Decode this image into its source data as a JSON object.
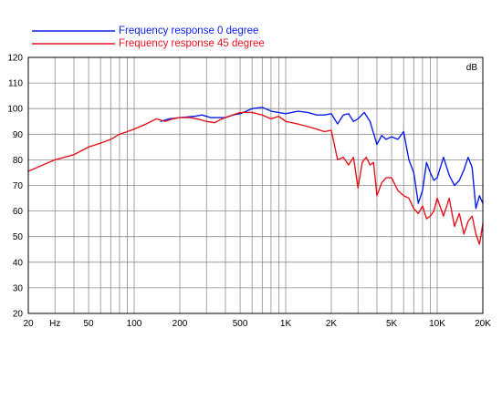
{
  "chart_data": {
    "type": "line",
    "xscale": "log",
    "xlim": [
      20,
      20000
    ],
    "ylim": [
      20,
      120
    ],
    "y_unit": "dB",
    "x_ticks": [
      {
        "value": 20,
        "label": "20"
      },
      {
        "value": 30,
        "label": "Hz"
      },
      {
        "value": 50,
        "label": "50"
      },
      {
        "value": 100,
        "label": "100"
      },
      {
        "value": 200,
        "label": "200"
      },
      {
        "value": 500,
        "label": "500"
      },
      {
        "value": 1000,
        "label": "1K"
      },
      {
        "value": 2000,
        "label": "2K"
      },
      {
        "value": 5000,
        "label": "5K"
      },
      {
        "value": 10000,
        "label": "10K"
      },
      {
        "value": 20000,
        "label": "20K"
      }
    ],
    "x_gridlines": [
      20,
      30,
      40,
      50,
      60,
      70,
      80,
      90,
      100,
      200,
      300,
      400,
      500,
      600,
      700,
      800,
      900,
      1000,
      2000,
      3000,
      4000,
      5000,
      6000,
      7000,
      8000,
      9000,
      10000,
      20000
    ],
    "y_ticks": [
      120,
      110,
      100,
      90,
      80,
      70,
      60,
      50,
      40,
      30,
      20
    ],
    "grid": true,
    "legend_position": "top-left",
    "series": [
      {
        "name": "Frequency response 0 degree",
        "color": "#0a1ee6",
        "points": [
          [
            150,
            95
          ],
          [
            170,
            96
          ],
          [
            200,
            96.5
          ],
          [
            250,
            97
          ],
          [
            280,
            97.5
          ],
          [
            320,
            96.5
          ],
          [
            400,
            96.5
          ],
          [
            450,
            97.5
          ],
          [
            500,
            98
          ],
          [
            550,
            99
          ],
          [
            600,
            100
          ],
          [
            700,
            100.5
          ],
          [
            800,
            99
          ],
          [
            900,
            98.5
          ],
          [
            1000,
            98
          ],
          [
            1200,
            99
          ],
          [
            1400,
            98.5
          ],
          [
            1600,
            97.5
          ],
          [
            1800,
            97.5
          ],
          [
            2000,
            98
          ],
          [
            2200,
            94
          ],
          [
            2400,
            97.5
          ],
          [
            2600,
            98
          ],
          [
            2800,
            95
          ],
          [
            3000,
            96
          ],
          [
            3300,
            98.5
          ],
          [
            3600,
            95
          ],
          [
            4000,
            86
          ],
          [
            4300,
            89.5
          ],
          [
            4600,
            88
          ],
          [
            5000,
            89
          ],
          [
            5500,
            88
          ],
          [
            6000,
            91
          ],
          [
            6500,
            80
          ],
          [
            7000,
            75
          ],
          [
            7500,
            63
          ],
          [
            8000,
            68
          ],
          [
            8500,
            79
          ],
          [
            9000,
            75
          ],
          [
            9500,
            72
          ],
          [
            10000,
            73
          ],
          [
            11000,
            81
          ],
          [
            12000,
            74
          ],
          [
            13000,
            70
          ],
          [
            14000,
            72
          ],
          [
            15000,
            76
          ],
          [
            16000,
            81
          ],
          [
            17000,
            77
          ],
          [
            18000,
            61
          ],
          [
            19000,
            66
          ],
          [
            20000,
            63
          ]
        ]
      },
      {
        "name": "Frequency response 45 degree",
        "color": "#e6141e",
        "points": [
          [
            20,
            75.5
          ],
          [
            25,
            78
          ],
          [
            30,
            80
          ],
          [
            40,
            82
          ],
          [
            50,
            85
          ],
          [
            60,
            86.5
          ],
          [
            70,
            88
          ],
          [
            80,
            90
          ],
          [
            90,
            91
          ],
          [
            100,
            92
          ],
          [
            120,
            94
          ],
          [
            140,
            96
          ],
          [
            160,
            95
          ],
          [
            180,
            96
          ],
          [
            200,
            96.5
          ],
          [
            230,
            96.5
          ],
          [
            260,
            96
          ],
          [
            300,
            95
          ],
          [
            340,
            94.5
          ],
          [
            380,
            96
          ],
          [
            420,
            97
          ],
          [
            500,
            98.5
          ],
          [
            600,
            98.5
          ],
          [
            700,
            97.5
          ],
          [
            800,
            96
          ],
          [
            900,
            97
          ],
          [
            1000,
            95
          ],
          [
            1200,
            94
          ],
          [
            1400,
            93
          ],
          [
            1600,
            92
          ],
          [
            1800,
            91
          ],
          [
            2000,
            91.5
          ],
          [
            2200,
            80
          ],
          [
            2400,
            81
          ],
          [
            2600,
            78
          ],
          [
            2800,
            81
          ],
          [
            3000,
            69
          ],
          [
            3200,
            79
          ],
          [
            3400,
            81
          ],
          [
            3600,
            78
          ],
          [
            3800,
            79
          ],
          [
            4000,
            66
          ],
          [
            4300,
            71
          ],
          [
            4600,
            73
          ],
          [
            5000,
            73
          ],
          [
            5500,
            68
          ],
          [
            6000,
            66
          ],
          [
            6500,
            65
          ],
          [
            7000,
            61
          ],
          [
            7500,
            59
          ],
          [
            8000,
            62
          ],
          [
            8500,
            57
          ],
          [
            9000,
            58
          ],
          [
            9500,
            60
          ],
          [
            10000,
            65
          ],
          [
            11000,
            58
          ],
          [
            12000,
            65
          ],
          [
            13000,
            54
          ],
          [
            14000,
            59
          ],
          [
            15000,
            51
          ],
          [
            16000,
            56
          ],
          [
            17000,
            58
          ],
          [
            18000,
            51
          ],
          [
            19000,
            47
          ],
          [
            20000,
            55
          ]
        ]
      }
    ]
  }
}
